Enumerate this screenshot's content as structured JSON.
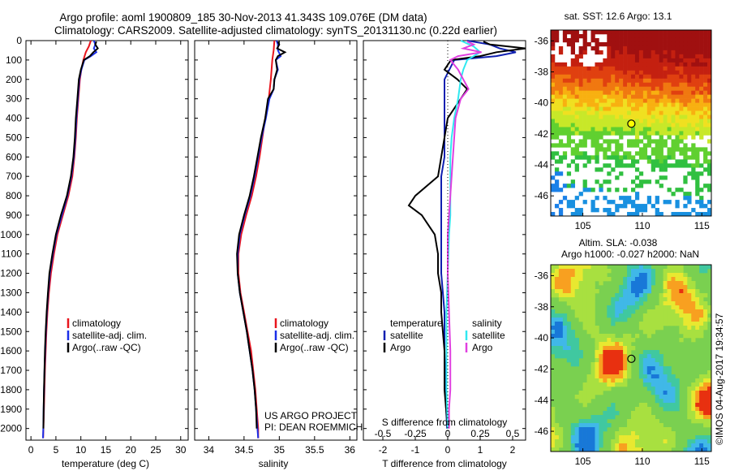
{
  "header": {
    "line1": "Argo profile: aoml 1900809_185 30-Nov-2013 41.343S 109.076E (DM data)",
    "line2": "Climatology: CARS2009. Satellite-adjusted climatology: synTS_20131130.nc (0.22d earlier)"
  },
  "side_label": "©IMOS 04-Aug-2017 19:34:57",
  "project": {
    "line1": "US ARGO PROJECT",
    "line2": "PI: DEAN ROEMMICH"
  },
  "colors": {
    "climatology": "#e8141c",
    "satellite_clim": "#1a2ee8",
    "argo": "#000000",
    "temp_sat": "#0f1fb0",
    "sal_argo": "#e040e0",
    "sal_sat": "#30e8f0"
  },
  "chart_data": [
    {
      "type": "line",
      "name": "temperature-profile",
      "xlabel": "temperature (deg C)",
      "xlim": [
        -1,
        31.5
      ],
      "ylim": [
        2060,
        0
      ],
      "xticks": [
        0,
        5,
        10,
        15,
        20,
        25,
        30
      ],
      "yticks": [
        0,
        100,
        200,
        300,
        400,
        500,
        600,
        700,
        800,
        900,
        1000,
        1100,
        1200,
        1300,
        1400,
        1500,
        1600,
        1700,
        1800,
        1900,
        2000
      ],
      "legend": [
        "climatology",
        "satellite-adj. clim.",
        "Argo(..raw -QC)"
      ],
      "series": [
        {
          "name": "climatology",
          "color": "#e8141c",
          "depth": [
            0,
            30,
            60,
            100,
            150,
            200,
            300,
            400,
            500,
            600,
            700,
            800,
            900,
            1000,
            1100,
            1200,
            1300,
            1400,
            1500,
            1600,
            1700,
            1800,
            1900,
            2000,
            2050
          ],
          "values": [
            12.0,
            11.6,
            11.0,
            10.5,
            10.1,
            9.8,
            9.5,
            9.2,
            9.0,
            8.7,
            8.3,
            7.5,
            6.4,
            5.3,
            4.6,
            4.0,
            3.6,
            3.3,
            3.1,
            2.95,
            2.8,
            2.7,
            2.6,
            2.5,
            2.45
          ]
        },
        {
          "name": "satellite-adj. clim.",
          "color": "#1a2ee8",
          "depth": [
            0,
            20,
            40,
            60,
            80,
            100,
            150,
            200,
            300,
            400,
            500,
            600,
            700,
            800,
            900,
            1000,
            1100,
            1200,
            1300,
            1400,
            1500,
            1600,
            1700,
            1800,
            1900,
            2000,
            2050
          ],
          "values": [
            12.6,
            12.9,
            12.6,
            13.1,
            12.0,
            10.7,
            10.1,
            9.7,
            9.4,
            9.1,
            8.9,
            8.6,
            8.1,
            7.3,
            6.2,
            5.1,
            4.4,
            3.8,
            3.45,
            3.2,
            3.0,
            2.85,
            2.72,
            2.62,
            2.55,
            2.48,
            2.42
          ]
        },
        {
          "name": "Argo(..raw -QC)",
          "color": "#000000",
          "depth": [
            5,
            20,
            40,
            60,
            80,
            100,
            150,
            200,
            300,
            400,
            500,
            600,
            700,
            800,
            900,
            1000,
            1100,
            1200,
            1300,
            1400,
            1500,
            1600,
            1700,
            1800,
            1900,
            2000
          ],
          "values": [
            13.1,
            12.9,
            13.4,
            12.5,
            11.8,
            10.6,
            10.0,
            9.6,
            9.3,
            9.0,
            8.8,
            8.5,
            8.0,
            7.2,
            6.0,
            5.0,
            4.3,
            3.7,
            3.4,
            3.15,
            2.95,
            2.8,
            2.7,
            2.6,
            2.55,
            2.5
          ]
        }
      ]
    },
    {
      "type": "line",
      "name": "salinity-profile",
      "xlabel": "salinity",
      "xlim": [
        33.8,
        36.1
      ],
      "ylim": [
        2060,
        0
      ],
      "xticks": [
        34,
        34.5,
        35,
        35.5,
        36
      ],
      "legend": [
        "climatology",
        "satellite-adj. clim.",
        "Argo(..raw -QC)"
      ],
      "series": [
        {
          "name": "climatology",
          "color": "#e8141c",
          "depth": [
            0,
            50,
            100,
            200,
            300,
            400,
            500,
            600,
            700,
            800,
            900,
            1000,
            1100,
            1200,
            1300,
            1400,
            1500,
            1600,
            1700,
            1800,
            1900,
            2000,
            2050
          ],
          "values": [
            34.93,
            34.92,
            34.9,
            34.88,
            34.85,
            34.8,
            34.76,
            34.72,
            34.67,
            34.61,
            34.53,
            34.46,
            34.42,
            34.42,
            34.45,
            34.5,
            34.55,
            34.6,
            34.63,
            34.66,
            34.68,
            34.7,
            34.7
          ]
        },
        {
          "name": "satellite-adj. clim.",
          "color": "#1a2ee8",
          "depth": [
            0,
            20,
            50,
            80,
            100,
            150,
            200,
            250,
            300,
            400,
            500,
            600,
            700,
            800,
            900,
            1000,
            1100,
            1200,
            1300,
            1400,
            1500,
            1600,
            1700,
            1800,
            1900,
            2000,
            2050
          ],
          "values": [
            34.96,
            34.98,
            34.98,
            35.02,
            34.95,
            34.98,
            34.93,
            34.92,
            34.86,
            34.81,
            34.75,
            34.7,
            34.65,
            34.59,
            34.51,
            34.44,
            34.41,
            34.41,
            34.44,
            34.49,
            34.54,
            34.58,
            34.62,
            34.65,
            34.67,
            34.69,
            34.7
          ]
        },
        {
          "name": "Argo(..raw -QC)",
          "color": "#000000",
          "depth": [
            5,
            20,
            40,
            60,
            80,
            100,
            150,
            200,
            250,
            300,
            400,
            500,
            600,
            700,
            800,
            900,
            1000,
            1100,
            1200,
            1300,
            1400,
            1500,
            1600,
            1700,
            1800,
            1900,
            2000
          ],
          "values": [
            34.98,
            35.0,
            34.97,
            35.08,
            34.98,
            34.95,
            34.97,
            34.93,
            34.92,
            34.84,
            34.8,
            34.74,
            34.69,
            34.64,
            34.58,
            34.5,
            34.43,
            34.4,
            34.41,
            34.44,
            34.49,
            34.54,
            34.58,
            34.62,
            34.65,
            34.67,
            34.68
          ]
        }
      ]
    },
    {
      "type": "line",
      "name": "difference-profile",
      "xlabel_top": "S difference from climatology",
      "xlabel": "T difference from climatology",
      "tlim": [
        -2.6,
        2.4
      ],
      "ylim": [
        2060,
        0
      ],
      "xticks_t": [
        -2,
        -1,
        0,
        1,
        2
      ],
      "xticks_s": [
        -0.5,
        -0.25,
        0,
        0.25,
        0.5
      ],
      "xticklabels_s": [
        "-0.5",
        "-0.25",
        "0",
        "0.25",
        "0.5"
      ],
      "legend_temperature": {
        "title": "temperature",
        "items": [
          "satellite",
          "Argo"
        ]
      },
      "legend_salinity": {
        "title": "salinity",
        "items": [
          "satellite",
          "Argo"
        ]
      },
      "series": [
        {
          "name": "satellite",
          "group": "temperature",
          "color": "#0f1fb0",
          "depth": [
            0,
            20,
            40,
            60,
            80,
            100,
            150,
            200,
            300,
            400,
            500,
            600,
            700,
            800,
            900,
            1000,
            1100,
            1200,
            1300,
            1400,
            1500,
            1600,
            1700,
            1800,
            1900,
            2000
          ],
          "values": [
            0.6,
            1.3,
            1.6,
            2.1,
            1.5,
            0.2,
            0.05,
            -0.1,
            -0.1,
            -0.1,
            -0.1,
            -0.1,
            -0.2,
            -0.2,
            -0.2,
            -0.2,
            -0.2,
            -0.2,
            -0.15,
            -0.1,
            -0.1,
            -0.1,
            -0.08,
            -0.08,
            -0.05,
            -0.02
          ]
        },
        {
          "name": "Argo",
          "group": "temperature",
          "color": "#000000",
          "depth": [
            5,
            20,
            40,
            60,
            80,
            100,
            150,
            200,
            250,
            300,
            400,
            500,
            600,
            700,
            800,
            850,
            900,
            1000,
            1100,
            1200,
            1300,
            1400,
            1500,
            1600,
            1700,
            1800,
            1900,
            2000
          ],
          "values": [
            1.1,
            1.3,
            2.4,
            1.5,
            1.0,
            0.1,
            -0.1,
            0.3,
            0.6,
            0.4,
            0.0,
            -0.1,
            -0.2,
            -0.3,
            -1.0,
            -1.2,
            -0.8,
            -0.4,
            -0.3,
            -0.3,
            -0.2,
            -0.2,
            -0.15,
            -0.1,
            -0.1,
            -0.1,
            -0.05,
            0.0
          ]
        },
        {
          "name": "satellite",
          "group": "salinity",
          "color": "#30e8f0",
          "depth": [
            0,
            30,
            60,
            100,
            150,
            200,
            300,
            400,
            500,
            600,
            700,
            800,
            900,
            1000,
            1200,
            1400,
            1600,
            1800,
            2000
          ],
          "values": [
            0.1,
            0.2,
            0.25,
            0.15,
            0.12,
            0.1,
            0.08,
            0.05,
            0.03,
            0.02,
            0.02,
            0.02,
            0.02,
            0.01,
            0.0,
            -0.01,
            -0.01,
            -0.01,
            0.0
          ]
        },
        {
          "name": "Argo",
          "group": "salinity",
          "color": "#e040e0",
          "depth": [
            5,
            20,
            40,
            60,
            80,
            100,
            150,
            200,
            250,
            300,
            400,
            500,
            600,
            700,
            800,
            900,
            1000,
            1200,
            1400,
            1600,
            1800,
            1900,
            2000
          ],
          "values": [
            0.15,
            0.2,
            0.12,
            0.26,
            0.08,
            0.02,
            0.08,
            0.12,
            0.16,
            0.1,
            0.06,
            0.05,
            0.04,
            0.03,
            0.02,
            0.01,
            0.0,
            0.0,
            0.01,
            0.02,
            0.02,
            0.01,
            0.01
          ]
        }
      ]
    },
    {
      "type": "heatmap",
      "name": "sst-map",
      "title": "sat. SST: 12.6  Argo: 13.1",
      "xlim": [
        102.3,
        115.8
      ],
      "ylim": [
        -47.3,
        -35.3
      ],
      "xticks": [
        105,
        110,
        115
      ],
      "yticks": [
        -46,
        -44,
        -42,
        -40,
        -38,
        -36
      ],
      "marker": {
        "lon": 109.076,
        "lat": -41.343,
        "fill": "#ffff00"
      }
    },
    {
      "type": "heatmap",
      "name": "sla-map",
      "title_line1": "Altim. SLA: -0.038",
      "title_line2": "Argo h1000: -0.027  h2000: NaN",
      "xlim": [
        102.3,
        115.8
      ],
      "ylim": [
        -47.3,
        -35.3
      ],
      "xticks": [
        105,
        110,
        115
      ],
      "yticks": [
        -46,
        -44,
        -42,
        -40,
        -38,
        -36
      ],
      "marker": {
        "lon": 109.076,
        "lat": -41.343,
        "fill": "none"
      }
    }
  ]
}
